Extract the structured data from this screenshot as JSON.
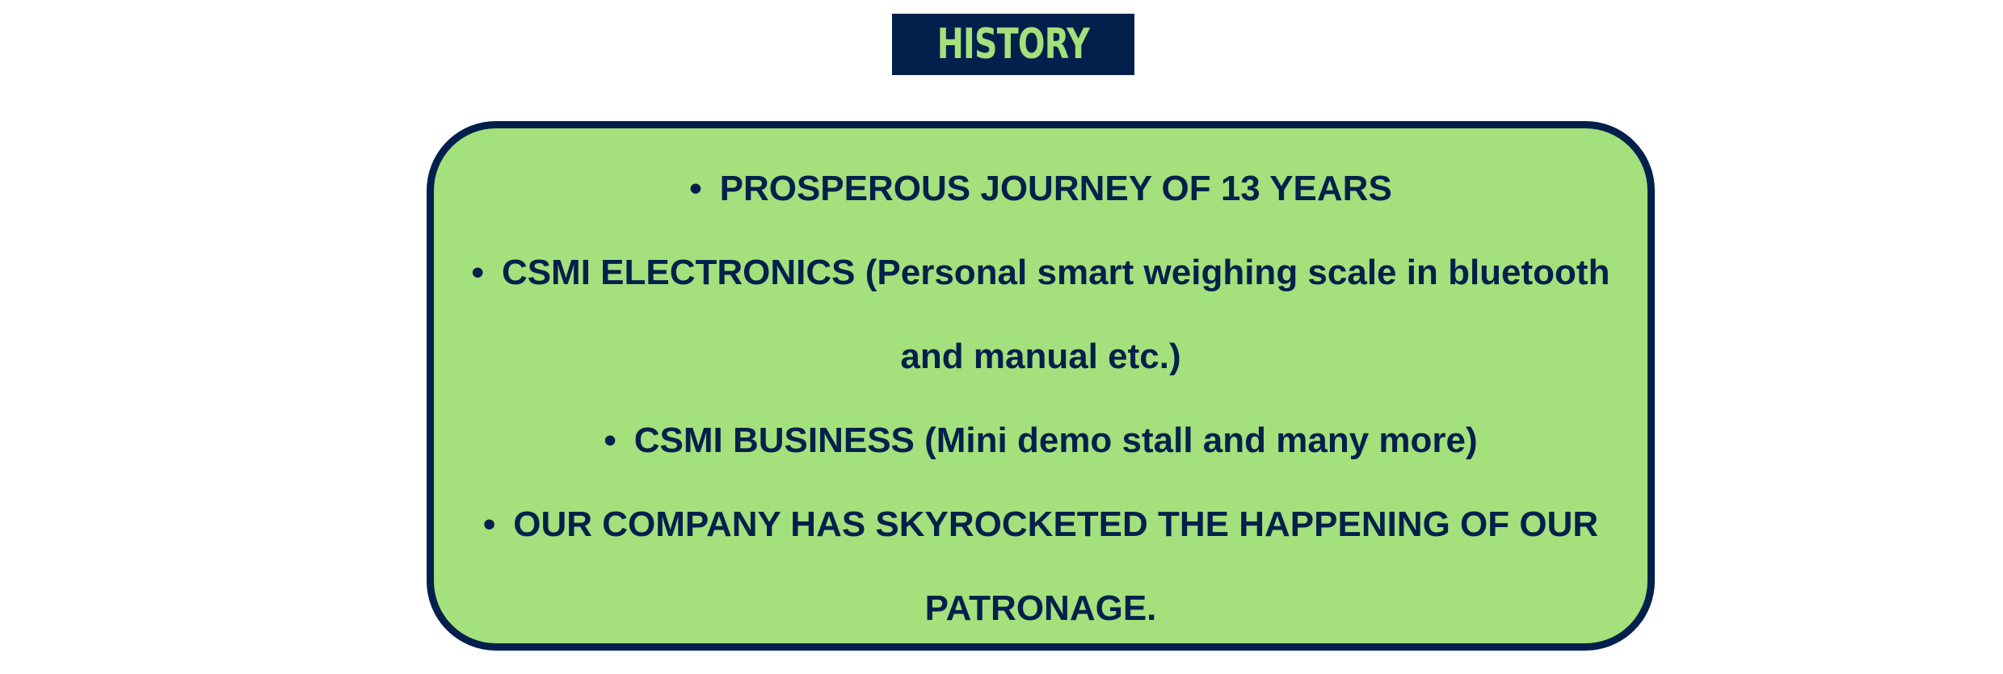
{
  "title": "HISTORY",
  "colors": {
    "navy": "#02204b",
    "green": "#a4e07c",
    "background": "#ffffff"
  },
  "bullet_glyph": "•",
  "history": {
    "item1": "PROSPEROUS JOURNEY OF 13 YEARS",
    "item2_line1": "CSMI ELECTRONICS (Personal smart weighing scale in bluetooth",
    "item2_line2": "and manual etc.)",
    "item3": "CSMI BUSINESS (Mini demo stall and many more)",
    "item4_line1": "OUR COMPANY HAS SKYROCKETED THE HAPPENING OF OUR",
    "item4_line2": "PATRONAGE."
  }
}
